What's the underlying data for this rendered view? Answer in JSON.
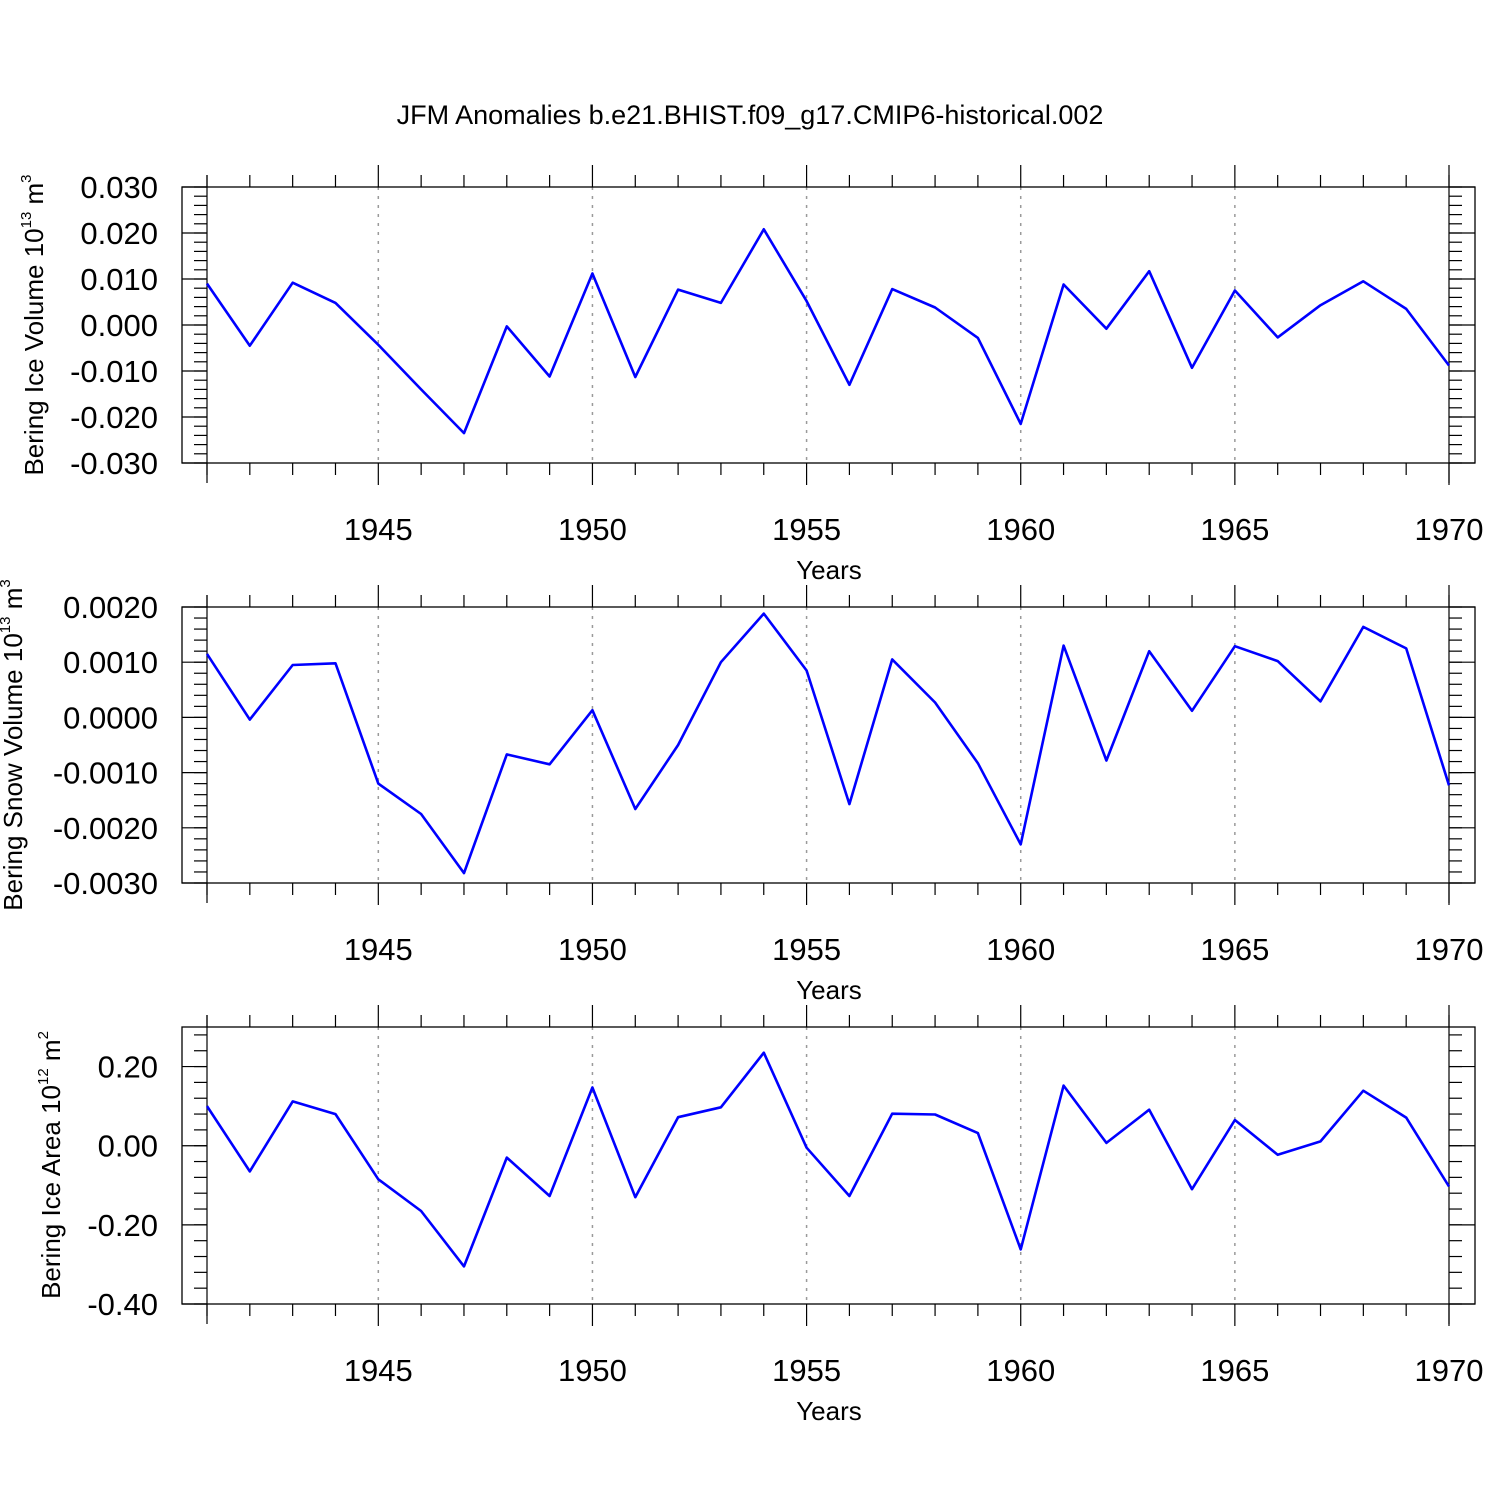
{
  "title": "JFM Anomalies b.e21.BHIST.f09_g17.CMIP6-historical.002",
  "colors": {
    "series": "#0000ff",
    "axis": "#000000",
    "grid": "#9a9a9a"
  },
  "chart_data": [
    {
      "type": "line",
      "ylabel": {
        "main": "Bering Ice Volume 10",
        "exp": "13",
        "unit": " m",
        "unit_exp": "3"
      },
      "xlabel": "Years",
      "xlim": [
        1941,
        1970
      ],
      "ylim": [
        -0.03,
        0.03
      ],
      "yticks": [
        0.03,
        0.02,
        0.01,
        0.0,
        -0.01,
        -0.02,
        -0.03
      ],
      "ytick_labels": [
        "0.030",
        "0.020",
        "0.010",
        "0.000",
        "-0.010",
        "-0.020",
        "-0.030"
      ],
      "xticks": [
        1945,
        1950,
        1955,
        1960,
        1965,
        1970
      ],
      "xtick_labels": [
        "1945",
        "1950",
        "1955",
        "1960",
        "1965",
        "1970"
      ],
      "x": [
        1941,
        1942,
        1943,
        1944,
        1945,
        1946,
        1947,
        1948,
        1949,
        1950,
        1951,
        1952,
        1953,
        1954,
        1955,
        1956,
        1957,
        1958,
        1959,
        1960,
        1961,
        1962,
        1963,
        1964,
        1965,
        1966,
        1967,
        1968,
        1969,
        1970
      ],
      "values": [
        0.009,
        -0.0045,
        0.0092,
        0.0048,
        -0.0043,
        -0.014,
        -0.0235,
        -0.0003,
        -0.0112,
        0.0112,
        -0.0113,
        0.0077,
        0.0048,
        0.0208,
        0.0052,
        -0.013,
        0.0078,
        0.0038,
        -0.0028,
        -0.0215,
        0.0088,
        -0.0008,
        0.0117,
        -0.0093,
        0.0075,
        -0.0027,
        0.0043,
        0.0095,
        0.0035,
        -0.0088
      ]
    },
    {
      "type": "line",
      "ylabel": {
        "main": "Bering Snow Volume 10",
        "exp": "13",
        "unit": " m",
        "unit_exp": "3"
      },
      "xlabel": "Years",
      "xlim": [
        1941,
        1970
      ],
      "ylim": [
        -0.003,
        0.002
      ],
      "yticks": [
        0.002,
        0.001,
        0.0,
        -0.001,
        -0.002,
        -0.003
      ],
      "ytick_labels": [
        "0.0020",
        "0.0010",
        "0.0000",
        "-0.0010",
        "-0.0020",
        "-0.0030"
      ],
      "xticks": [
        1945,
        1950,
        1955,
        1960,
        1965,
        1970
      ],
      "xtick_labels": [
        "1945",
        "1950",
        "1955",
        "1960",
        "1965",
        "1970"
      ],
      "x": [
        1941,
        1942,
        1943,
        1944,
        1945,
        1946,
        1947,
        1948,
        1949,
        1950,
        1951,
        1952,
        1953,
        1954,
        1955,
        1956,
        1957,
        1958,
        1959,
        1960,
        1961,
        1962,
        1963,
        1964,
        1965,
        1966,
        1967,
        1968,
        1969,
        1970
      ],
      "values": [
        0.00115,
        -4e-05,
        0.00095,
        0.00098,
        -0.0012,
        -0.00175,
        -0.00282,
        -0.00067,
        -0.00085,
        0.00013,
        -0.00166,
        -0.0005,
        0.001,
        0.00188,
        0.00085,
        -0.00157,
        0.00105,
        0.00027,
        -0.00083,
        -0.0023,
        0.0013,
        -0.00078,
        0.0012,
        0.00012,
        0.00129,
        0.00102,
        0.00029,
        0.00164,
        0.00125,
        -0.00123
      ]
    },
    {
      "type": "line",
      "ylabel": {
        "main": "Bering Ice Area 10",
        "exp": "12",
        "unit": " m",
        "unit_exp": "2"
      },
      "xlabel": "Years",
      "xlim": [
        1941,
        1970
      ],
      "ylim": [
        -0.4,
        0.3
      ],
      "yticks": [
        0.2,
        0.0,
        -0.2,
        -0.4
      ],
      "ytick_labels": [
        "0.20",
        "0.00",
        "-0.20",
        "-0.40"
      ],
      "xticks": [
        1945,
        1950,
        1955,
        1960,
        1965,
        1970
      ],
      "xtick_labels": [
        "1945",
        "1950",
        "1955",
        "1960",
        "1965",
        "1970"
      ],
      "x": [
        1941,
        1942,
        1943,
        1944,
        1945,
        1946,
        1947,
        1948,
        1949,
        1950,
        1951,
        1952,
        1953,
        1954,
        1955,
        1956,
        1957,
        1958,
        1959,
        1960,
        1961,
        1962,
        1963,
        1964,
        1965,
        1966,
        1967,
        1968,
        1969,
        1970
      ],
      "values": [
        0.1,
        -0.065,
        0.112,
        0.08,
        -0.085,
        -0.165,
        -0.305,
        -0.03,
        -0.127,
        0.147,
        -0.13,
        0.072,
        0.097,
        0.235,
        -0.005,
        -0.127,
        0.081,
        0.079,
        0.032,
        -0.262,
        0.152,
        0.007,
        0.091,
        -0.11,
        0.065,
        -0.023,
        0.011,
        0.139,
        0.071,
        -0.103
      ]
    }
  ]
}
